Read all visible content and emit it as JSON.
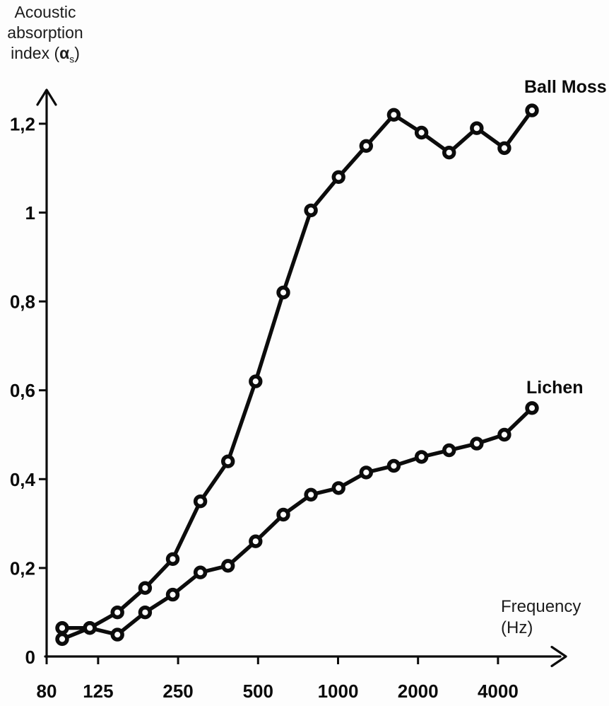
{
  "figure": {
    "background": "#fdfdfd",
    "ink": "#0c0c0c",
    "text_ink": "#1c1c1c"
  },
  "y_axis_title": {
    "line1": "Acoustic",
    "line2": "absorption",
    "line3_word": "index (",
    "line3_symbol": "α",
    "line3_sub": "s",
    "line3_close": ")"
  },
  "x_axis_title": {
    "line1": "Frequency",
    "line2": "(Hz)"
  },
  "series_labels": {
    "ball_moss": "Ball Moss",
    "lichen": "Lichen"
  },
  "chart_data": {
    "type": "line",
    "title": "",
    "xlabel": "Frequency (Hz)",
    "ylabel": "Acoustic absorption index (αs)",
    "x_scale": "log2",
    "grid": false,
    "legend_position": "inline labels at right ends of lines",
    "marker": "open-circle",
    "ylim": [
      0,
      1.3
    ],
    "x_tick_labels": [
      "80",
      "125",
      "250",
      "500",
      "1000",
      "2000",
      "4000"
    ],
    "x_tick_freqs": [
      80,
      125,
      250,
      500,
      1000,
      2000,
      4000
    ],
    "y_tick_labels": [
      "0",
      "0,2",
      "0,4",
      "0,6",
      "0,8",
      "1",
      "1,2"
    ],
    "y_tick_values": [
      0,
      0.2,
      0.4,
      0.6,
      0.8,
      1,
      1.2
    ],
    "categories": [
      100,
      125,
      160,
      200,
      250,
      315,
      400,
      500,
      630,
      800,
      1000,
      1250,
      1600,
      2000,
      2500,
      3150,
      4000,
      5000
    ],
    "series": [
      {
        "name": "Ball Moss",
        "values": [
          0.065,
          0.065,
          0.1,
          0.155,
          0.22,
          0.35,
          0.44,
          0.62,
          0.82,
          1.005,
          1.08,
          1.15,
          1.22,
          1.18,
          1.135,
          1.19,
          1.145,
          1.23
        ]
      },
      {
        "name": "Lichen",
        "values": [
          0.04,
          0.065,
          0.05,
          0.1,
          0.14,
          0.19,
          0.205,
          0.26,
          0.32,
          0.365,
          0.38,
          0.415,
          0.43,
          0.45,
          0.465,
          0.48,
          0.5,
          0.56
        ]
      }
    ]
  }
}
